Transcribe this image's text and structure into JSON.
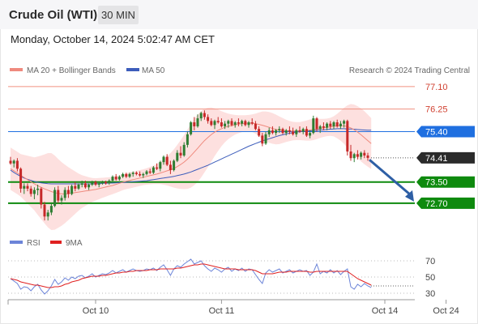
{
  "header": {
    "title": "Crude Oil (WTI)",
    "interval": "30 MIN"
  },
  "timestamp": "Monday, October 14, 2024 5:02:47 AM CET",
  "legend": {
    "bollinger": "MA 20 + Bollinger Bands",
    "ma50": "MA 50",
    "credit": "Research © 2024 Trading Central",
    "rsi": "RSI",
    "rsi_ma": "9MA"
  },
  "colors": {
    "bull": "#2e7d32",
    "bear": "#c62828",
    "ma50": "#3d5dbb",
    "ma20": "#ef8a7e",
    "band": "#fde0df",
    "support": "#0e8a0e",
    "resistance": "#f09080",
    "pivot": "#1f6fe0",
    "price": "#2b2b2b",
    "arrow": "#2e5fa5",
    "rsi": "#6c84d8",
    "rsi_ma": "#e02020"
  },
  "levels": [
    {
      "label": "77.10",
      "value": 77.1,
      "kind": "resistance"
    },
    {
      "label": "76.25",
      "value": 76.25,
      "kind": "resistance"
    },
    {
      "label": "75.40",
      "value": 75.4,
      "kind": "pivot"
    },
    {
      "label": "74.41",
      "value": 74.41,
      "kind": "price"
    },
    {
      "label": "73.50",
      "value": 73.5,
      "kind": "support"
    },
    {
      "label": "72.70",
      "value": 72.7,
      "kind": "support"
    }
  ],
  "rsi_ticks": [
    {
      "label": "70",
      "value": 70
    },
    {
      "label": "50",
      "value": 50
    },
    {
      "label": "30",
      "value": 30
    }
  ],
  "xaxis": {
    "labels": [
      "Oct 10",
      "Oct 11",
      "Oct 14",
      "Oct 24"
    ],
    "label_bar_index": [
      25,
      62,
      110,
      128
    ]
  },
  "forecast": {
    "from": 74.4,
    "to": 72.7
  },
  "chart_data": {
    "type": "candlestick",
    "title": "Crude Oil (WTI)",
    "interval": "30 MIN",
    "ylim": [
      71.75,
      77.4
    ],
    "rsi_ylim": [
      25,
      80
    ],
    "ohlc": [
      [
        74.3,
        74.45,
        74.15,
        74.2
      ],
      [
        74.2,
        74.35,
        74.05,
        74.3
      ],
      [
        74.3,
        74.4,
        73.9,
        74.0
      ],
      [
        74.0,
        74.05,
        73.1,
        73.25
      ],
      [
        73.25,
        73.45,
        73.05,
        73.35
      ],
      [
        73.35,
        73.45,
        73.15,
        73.25
      ],
      [
        73.25,
        73.35,
        72.95,
        73.05
      ],
      [
        73.05,
        73.3,
        72.85,
        73.2
      ],
      [
        73.2,
        73.4,
        73.0,
        73.25
      ],
      [
        73.25,
        73.3,
        72.5,
        72.65
      ],
      [
        72.65,
        72.75,
        72.05,
        72.2
      ],
      [
        72.2,
        72.45,
        72.05,
        72.35
      ],
      [
        72.35,
        72.7,
        72.25,
        72.6
      ],
      [
        72.6,
        73.3,
        72.55,
        73.2
      ],
      [
        73.2,
        73.35,
        72.7,
        72.8
      ],
      [
        72.8,
        73.0,
        72.65,
        72.9
      ],
      [
        72.9,
        73.3,
        72.8,
        73.2
      ],
      [
        73.2,
        73.35,
        72.9,
        73.05
      ],
      [
        73.05,
        73.4,
        73.0,
        73.35
      ],
      [
        73.35,
        73.5,
        73.15,
        73.25
      ],
      [
        73.25,
        73.45,
        73.2,
        73.4
      ],
      [
        73.4,
        73.55,
        73.3,
        73.45
      ],
      [
        73.45,
        73.55,
        73.25,
        73.3
      ],
      [
        73.3,
        73.45,
        73.2,
        73.4
      ],
      [
        73.4,
        73.55,
        73.35,
        73.5
      ],
      [
        73.5,
        73.55,
        73.35,
        73.4
      ],
      [
        73.4,
        73.5,
        73.3,
        73.45
      ],
      [
        73.45,
        73.55,
        73.4,
        73.5
      ],
      [
        73.5,
        73.55,
        73.4,
        73.45
      ],
      [
        73.45,
        73.6,
        73.4,
        73.55
      ],
      [
        73.55,
        73.75,
        73.5,
        73.7
      ],
      [
        73.7,
        73.8,
        73.55,
        73.6
      ],
      [
        73.6,
        73.75,
        73.55,
        73.7
      ],
      [
        73.7,
        73.85,
        73.65,
        73.8
      ],
      [
        73.8,
        73.85,
        73.65,
        73.7
      ],
      [
        73.7,
        73.85,
        73.65,
        73.8
      ],
      [
        73.8,
        73.9,
        73.7,
        73.85
      ],
      [
        73.85,
        73.9,
        73.75,
        73.8
      ],
      [
        73.8,
        73.9,
        73.7,
        73.75
      ],
      [
        73.75,
        73.85,
        73.65,
        73.8
      ],
      [
        73.8,
        73.95,
        73.75,
        73.9
      ],
      [
        73.9,
        74.0,
        73.8,
        73.85
      ],
      [
        73.85,
        74.1,
        73.8,
        74.05
      ],
      [
        74.05,
        74.2,
        73.95,
        74.0
      ],
      [
        74.0,
        74.3,
        73.9,
        74.25
      ],
      [
        74.25,
        74.5,
        74.15,
        74.45
      ],
      [
        74.45,
        74.55,
        74.1,
        74.15
      ],
      [
        74.15,
        74.3,
        73.8,
        73.95
      ],
      [
        73.95,
        74.35,
        73.9,
        74.3
      ],
      [
        74.3,
        74.7,
        74.25,
        74.6
      ],
      [
        74.6,
        74.85,
        74.4,
        74.5
      ],
      [
        74.5,
        75.0,
        74.45,
        74.9
      ],
      [
        74.9,
        75.4,
        74.8,
        75.3
      ],
      [
        75.3,
        75.8,
        75.25,
        75.75
      ],
      [
        75.75,
        75.95,
        75.45,
        75.6
      ],
      [
        75.6,
        76.05,
        75.55,
        75.9
      ],
      [
        75.9,
        76.15,
        75.8,
        76.1
      ],
      [
        76.1,
        76.2,
        75.85,
        75.95
      ],
      [
        75.95,
        76.05,
        75.7,
        75.8
      ],
      [
        75.8,
        75.9,
        75.6,
        75.65
      ],
      [
        75.65,
        75.85,
        75.5,
        75.8
      ],
      [
        75.8,
        75.95,
        75.7,
        75.75
      ],
      [
        75.75,
        75.9,
        75.55,
        75.6
      ],
      [
        75.6,
        75.8,
        75.5,
        75.7
      ],
      [
        75.7,
        75.85,
        75.55,
        75.8
      ],
      [
        75.8,
        75.9,
        75.6,
        75.65
      ],
      [
        75.65,
        75.8,
        75.55,
        75.75
      ],
      [
        75.75,
        75.9,
        75.6,
        75.7
      ],
      [
        75.7,
        75.85,
        75.6,
        75.8
      ],
      [
        75.8,
        75.85,
        75.6,
        75.65
      ],
      [
        75.65,
        75.8,
        75.55,
        75.75
      ],
      [
        75.75,
        75.9,
        75.65,
        75.7
      ],
      [
        75.7,
        75.8,
        75.45,
        75.5
      ],
      [
        75.5,
        75.6,
        75.2,
        75.25
      ],
      [
        75.25,
        75.35,
        74.85,
        74.95
      ],
      [
        74.95,
        75.4,
        74.9,
        75.3
      ],
      [
        75.3,
        75.55,
        75.2,
        75.45
      ],
      [
        75.45,
        75.6,
        75.3,
        75.35
      ],
      [
        75.35,
        75.5,
        75.25,
        75.45
      ],
      [
        75.45,
        75.6,
        75.35,
        75.5
      ],
      [
        75.5,
        75.55,
        75.3,
        75.35
      ],
      [
        75.35,
        75.5,
        75.25,
        75.45
      ],
      [
        75.45,
        75.6,
        75.3,
        75.4
      ],
      [
        75.4,
        75.55,
        75.25,
        75.3
      ],
      [
        75.3,
        75.5,
        75.2,
        75.45
      ],
      [
        75.45,
        75.6,
        75.35,
        75.4
      ],
      [
        75.4,
        75.55,
        75.3,
        75.5
      ],
      [
        75.5,
        75.6,
        75.2,
        75.25
      ],
      [
        75.25,
        75.45,
        75.15,
        75.35
      ],
      [
        75.35,
        76.0,
        75.3,
        75.9
      ],
      [
        75.9,
        75.95,
        75.4,
        75.5
      ],
      [
        75.5,
        75.65,
        75.35,
        75.6
      ],
      [
        75.6,
        75.75,
        75.45,
        75.55
      ],
      [
        75.55,
        75.75,
        75.45,
        75.7
      ],
      [
        75.7,
        75.8,
        75.5,
        75.6
      ],
      [
        75.6,
        75.8,
        75.5,
        75.75
      ],
      [
        75.75,
        75.85,
        75.55,
        75.6
      ],
      [
        75.6,
        75.8,
        75.5,
        75.7
      ],
      [
        75.7,
        75.85,
        75.55,
        75.8
      ],
      [
        75.8,
        75.85,
        74.5,
        74.65
      ],
      [
        74.65,
        74.9,
        74.3,
        74.4
      ],
      [
        74.4,
        74.6,
        74.25,
        74.55
      ],
      [
        74.55,
        74.7,
        74.35,
        74.45
      ],
      [
        74.45,
        74.65,
        74.35,
        74.6
      ],
      [
        74.6,
        74.7,
        74.4,
        74.5
      ],
      [
        74.5,
        74.6,
        74.3,
        74.41
      ]
    ],
    "ma50": [
      73.95,
      73.86,
      73.78,
      73.71,
      73.65,
      73.6,
      73.56,
      73.52,
      73.49,
      73.47,
      73.45,
      73.44,
      73.43,
      73.43,
      73.43,
      73.43,
      73.43,
      73.43,
      73.43,
      73.43,
      73.43,
      73.43,
      73.43,
      73.43,
      73.43,
      73.44,
      73.44,
      73.45,
      73.45,
      73.46,
      73.46,
      73.47,
      73.48,
      73.48,
      73.49,
      73.5,
      73.51,
      73.52,
      73.53,
      73.54,
      73.55,
      73.57,
      73.59,
      73.61,
      73.63,
      73.65,
      73.67,
      73.69,
      73.71,
      73.74,
      73.77,
      73.8,
      73.84,
      73.88,
      73.93,
      73.98,
      74.03,
      74.08,
      74.13,
      74.19,
      74.25,
      74.31,
      74.37,
      74.43,
      74.49,
      74.55,
      74.61,
      74.67,
      74.73,
      74.79,
      74.85,
      74.9,
      74.95,
      75.0,
      75.05,
      75.09,
      75.13,
      75.17,
      75.21,
      75.25,
      75.28,
      75.31,
      75.34,
      75.36,
      75.38,
      75.4,
      75.41,
      75.42,
      75.43,
      75.44,
      75.45,
      75.46,
      75.47,
      75.48,
      75.49,
      75.5,
      75.51,
      75.51,
      75.51,
      75.5,
      75.5,
      75.49,
      75.48,
      75.47,
      75.46,
      75.45,
      75.45
    ],
    "ma20": [
      74.0,
      73.92,
      73.84,
      73.75,
      73.67,
      73.59,
      73.51,
      73.43,
      73.36,
      73.3,
      73.24,
      73.19,
      73.14,
      73.1,
      73.07,
      73.05,
      73.05,
      73.06,
      73.08,
      73.1,
      73.12,
      73.14,
      73.16,
      73.18,
      73.2,
      73.22,
      73.25,
      73.28,
      73.31,
      73.34,
      73.37,
      73.41,
      73.45,
      73.49,
      73.53,
      73.56,
      73.59,
      73.62,
      73.65,
      73.68,
      73.71,
      73.74,
      73.77,
      73.8,
      73.84,
      73.88,
      73.92,
      73.96,
      74.01,
      74.08,
      74.16,
      74.25,
      74.36,
      74.49,
      74.63,
      74.77,
      74.92,
      75.06,
      75.18,
      75.29,
      75.38,
      75.45,
      75.51,
      75.56,
      75.6,
      75.63,
      75.66,
      75.68,
      75.7,
      75.71,
      75.72,
      75.72,
      75.7,
      75.67,
      75.64,
      75.6,
      75.56,
      75.52,
      75.48,
      75.45,
      75.44,
      75.43,
      75.42,
      75.42,
      75.42,
      75.42,
      75.43,
      75.44,
      75.46,
      75.48,
      75.5,
      75.52,
      75.54,
      75.56,
      75.58,
      75.6,
      75.61,
      75.62,
      75.62,
      75.59,
      75.54,
      75.47,
      75.38,
      75.28,
      75.17,
      75.06,
      74.95
    ],
    "band_width": [
      0.8,
      0.8,
      0.8,
      0.8,
      0.85,
      0.9,
      0.95,
      1.0,
      1.1,
      1.2,
      1.3,
      1.4,
      1.45,
      1.4,
      1.3,
      1.2,
      1.1,
      1.0,
      0.9,
      0.8,
      0.7,
      0.62,
      0.56,
      0.5,
      0.45,
      0.42,
      0.4,
      0.38,
      0.36,
      0.34,
      0.33,
      0.32,
      0.31,
      0.3,
      0.3,
      0.3,
      0.3,
      0.3,
      0.3,
      0.3,
      0.31,
      0.33,
      0.35,
      0.38,
      0.42,
      0.48,
      0.55,
      0.63,
      0.72,
      0.82,
      0.92,
      1.02,
      1.12,
      1.2,
      1.25,
      1.27,
      1.25,
      1.2,
      1.12,
      1.02,
      0.9,
      0.78,
      0.66,
      0.56,
      0.48,
      0.42,
      0.37,
      0.34,
      0.32,
      0.31,
      0.31,
      0.33,
      0.38,
      0.45,
      0.52,
      0.56,
      0.58,
      0.58,
      0.56,
      0.52,
      0.47,
      0.42,
      0.38,
      0.35,
      0.34,
      0.34,
      0.36,
      0.38,
      0.4,
      0.4,
      0.38,
      0.36,
      0.34,
      0.33,
      0.34,
      0.38,
      0.46,
      0.56,
      0.68,
      0.8,
      0.9,
      0.95,
      0.98,
      1.0,
      1.0,
      0.98,
      0.96
    ],
    "rsi": [
      48,
      45,
      42,
      35,
      38,
      37,
      33,
      38,
      41,
      34,
      29,
      33,
      39,
      47,
      41,
      44,
      49,
      46,
      50,
      48,
      51,
      52,
      49,
      51,
      54,
      50,
      52,
      54,
      53,
      55,
      58,
      55,
      57,
      59,
      56,
      58,
      60,
      58,
      57,
      58,
      60,
      59,
      61,
      58,
      62,
      65,
      59,
      52,
      60,
      64,
      62,
      66,
      69,
      72,
      66,
      68,
      70,
      64,
      60,
      57,
      61,
      59,
      56,
      60,
      62,
      57,
      60,
      58,
      61,
      57,
      60,
      59,
      53,
      47,
      42,
      55,
      59,
      56,
      58,
      60,
      55,
      57,
      59,
      55,
      57,
      59,
      57,
      58,
      52,
      56,
      66,
      54,
      57,
      55,
      59,
      55,
      58,
      53,
      57,
      60,
      38,
      35,
      41,
      38,
      42,
      39,
      37
    ],
    "rsi_ma": [
      48,
      47,
      46,
      44,
      43,
      42,
      41,
      40,
      40,
      39,
      38,
      37,
      37,
      38,
      38,
      39,
      41,
      42,
      44,
      45,
      46,
      48,
      49,
      50,
      51,
      51,
      51,
      52,
      52,
      53,
      54,
      55,
      55,
      56,
      56,
      57,
      57,
      58,
      58,
      58,
      58,
      59,
      59,
      59,
      60,
      60,
      60,
      60,
      60,
      61,
      61,
      62,
      63,
      64,
      65,
      65,
      66,
      66,
      65,
      64,
      63,
      62,
      61,
      60,
      60,
      60,
      60,
      59,
      59,
      59,
      59,
      59,
      58,
      56,
      54,
      54,
      54,
      54,
      55,
      56,
      56,
      56,
      57,
      57,
      57,
      57,
      57,
      57,
      56,
      56,
      57,
      57,
      57,
      57,
      57,
      57,
      57,
      57,
      57,
      57,
      54,
      51,
      48,
      46,
      44,
      42,
      40
    ]
  }
}
